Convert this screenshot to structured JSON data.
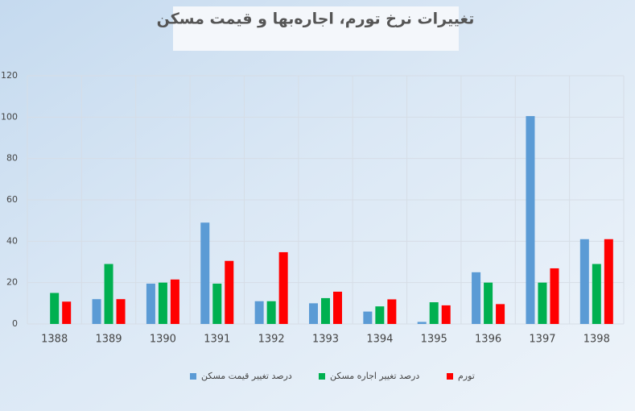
{
  "chart_data": {
    "type": "bar",
    "title": "تغییرات نرخ تورم، اجاره‌بها و قیمت مسکن",
    "categories": [
      "1388",
      "1389",
      "1390",
      "1391",
      "1392",
      "1393",
      "1394",
      "1395",
      "1396",
      "1397",
      "1398"
    ],
    "series": [
      {
        "name": "درصد تغییر قیمت مسکن",
        "color": "#5b9bd5",
        "values": [
          null,
          12,
          19.5,
          49,
          11,
          10,
          6,
          1,
          25,
          100.5,
          41
        ]
      },
      {
        "name": "درصد تغییر اجاره مسکن",
        "color": "#00b050",
        "values": [
          15,
          29,
          20,
          19.5,
          11,
          12.5,
          8.5,
          10.5,
          20,
          20,
          29
        ]
      },
      {
        "name": "تورم",
        "color": "#ff0000",
        "values": [
          10.8,
          12,
          21.5,
          30.5,
          34.7,
          15.6,
          11.9,
          9,
          9.6,
          26.9,
          41
        ]
      }
    ],
    "ylim": [
      0,
      120
    ],
    "yticks": [
      0,
      20,
      40,
      60,
      80,
      100,
      120
    ],
    "grid": true,
    "legend": "bottom"
  }
}
